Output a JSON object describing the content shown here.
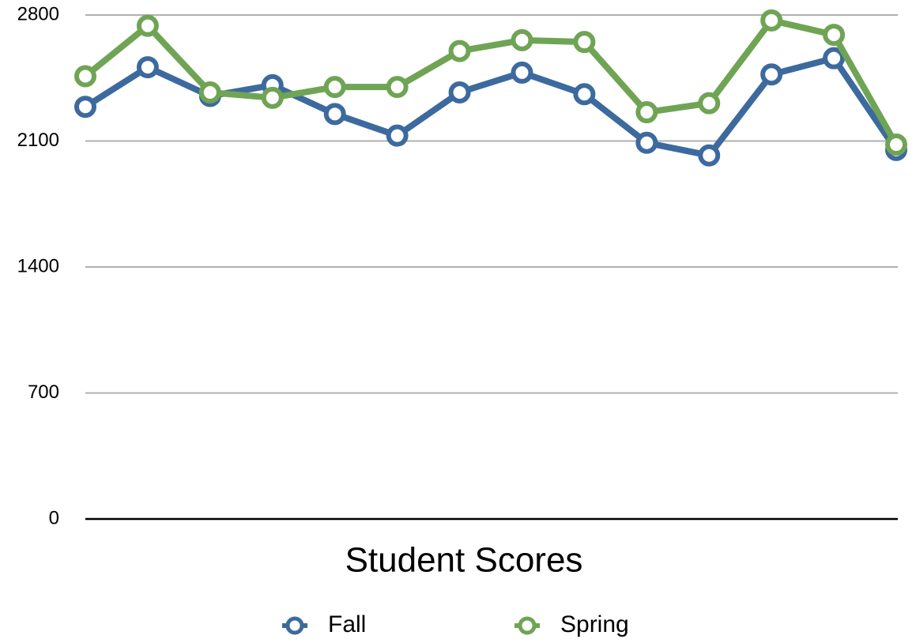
{
  "chart_data": {
    "type": "line",
    "title": "Student Scores",
    "categories": [
      null,
      null,
      null,
      null,
      null,
      null,
      null,
      null,
      null,
      null,
      null,
      null,
      null,
      null
    ],
    "series": [
      {
        "name": "Fall",
        "color": "#3d6a9e",
        "values": [
          2290,
          2510,
          2350,
          2410,
          2250,
          2130,
          2370,
          2480,
          2360,
          2090,
          2020,
          2470,
          2560,
          2050
        ]
      },
      {
        "name": "Spring",
        "color": "#6fa454",
        "values": [
          2460,
          2740,
          2370,
          2340,
          2400,
          2400,
          2600,
          2660,
          2650,
          2260,
          2310,
          2770,
          2690,
          2080
        ]
      }
    ],
    "ylim": [
      0,
      2800
    ],
    "yticks": [
      0,
      700,
      1400,
      2100,
      2800
    ],
    "grid": true
  }
}
